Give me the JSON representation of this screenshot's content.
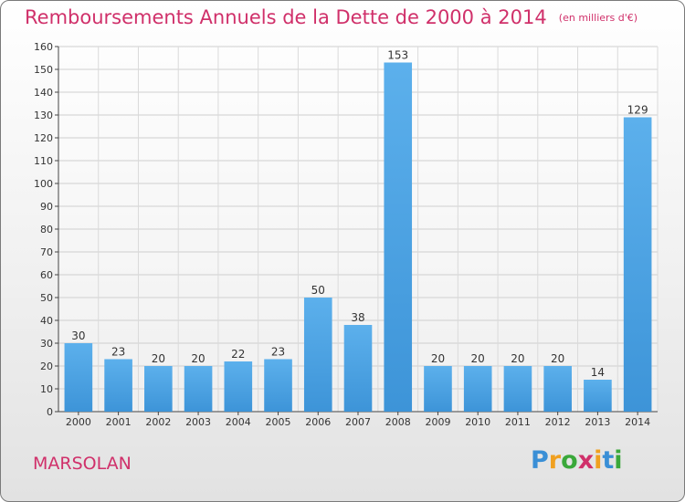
{
  "header": {
    "title": "Remboursements Annuels de la Dette de 2000 à 2014",
    "subtitle": "(en milliers d'€)"
  },
  "footer": {
    "commune": "MARSOLAN",
    "logo_letters": [
      "P",
      "r",
      "o",
      "x",
      "i",
      "t",
      "i"
    ],
    "logo_colors": [
      "#3a8fd6",
      "#f0a020",
      "#3aa83a",
      "#d0306a",
      "#f0a020",
      "#3a8fd6",
      "#3aa83a"
    ]
  },
  "chart_data": {
    "type": "bar",
    "title": "Remboursements Annuels de la Dette de 2000 à 2014",
    "subtitle": "(en milliers d'€)",
    "categories": [
      "2000",
      "2001",
      "2002",
      "2003",
      "2004",
      "2005",
      "2006",
      "2007",
      "2008",
      "2009",
      "2010",
      "2011",
      "2012",
      "2013",
      "2014"
    ],
    "values": [
      30,
      23,
      20,
      20,
      22,
      23,
      50,
      38,
      153,
      20,
      20,
      20,
      20,
      14,
      129
    ],
    "data_labels": [
      "30",
      "23",
      "20",
      "20",
      "22",
      "23",
      "50",
      "38",
      "153",
      "20",
      "20",
      "20",
      "20",
      "14",
      "129"
    ],
    "ylim": [
      0,
      160
    ],
    "yticks": [
      0,
      10,
      20,
      30,
      40,
      50,
      60,
      70,
      80,
      90,
      100,
      110,
      120,
      130,
      140,
      150,
      160
    ],
    "grid": true,
    "bar_color": "#3d94d8",
    "bar_color_light": "#5cb0ec",
    "label_color": "#333333"
  }
}
